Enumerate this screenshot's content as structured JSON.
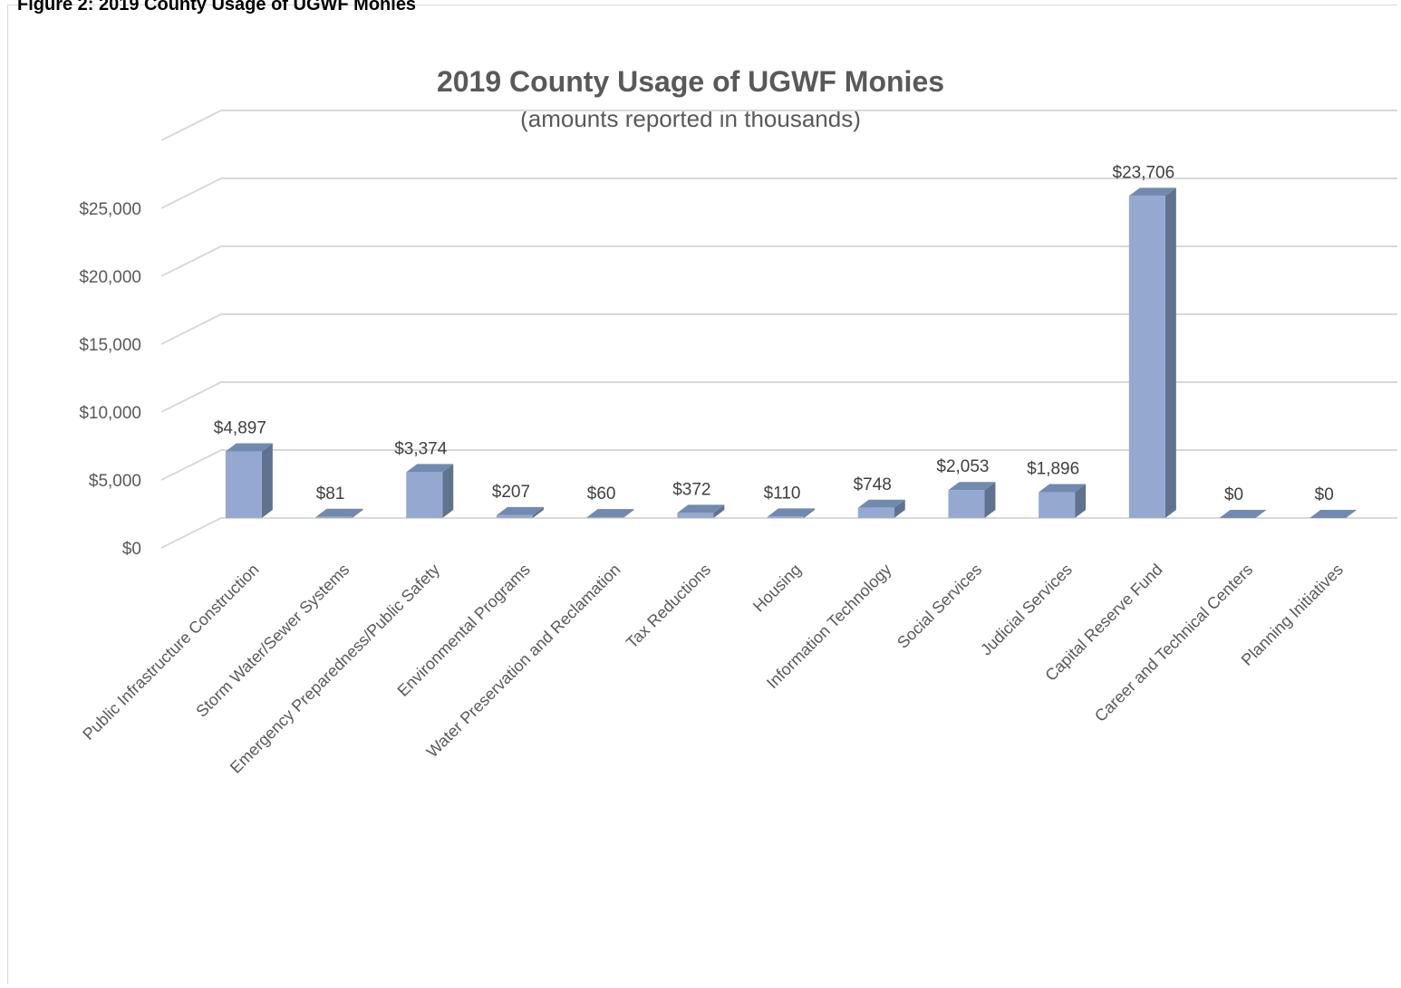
{
  "page": {
    "heading": "Figure 2: 2019 County Usage of UGWF Monies"
  },
  "chart_data": {
    "type": "bar",
    "title": "2019 County Usage of UGWF Monies",
    "subtitle": "(amounts reported in thousands)",
    "categories": [
      "Public Infrastructure Construction",
      "Storm Water/Sewer Systems",
      "Emergency Preparedness/Public Safety",
      "Environmental Programs",
      "Water Preservation and Reclamation",
      "Tax Reductions",
      "Housing",
      "Information Technology",
      "Social Services",
      "Judicial Services",
      "Capital Reserve Fund",
      "Career and Technical Centers",
      "Planning Initiatives"
    ],
    "values": [
      4897,
      81,
      3374,
      207,
      60,
      372,
      110,
      748,
      2053,
      1896,
      23706,
      0,
      0
    ],
    "data_labels": [
      "$4,897",
      "$81",
      "$3,374",
      "$207",
      "$60",
      "$372",
      "$110",
      "$748",
      "$2,053",
      "$1,896",
      "$23,706",
      "$0",
      "$0"
    ],
    "y_ticks": [
      "$0",
      "$5,000",
      "$10,000",
      "$15,000",
      "$20,000",
      "$25,000"
    ],
    "ylim": [
      0,
      25000
    ],
    "grid": true,
    "legend": false,
    "style": "3d-column",
    "colors": {
      "bar_front": "#95a9d0",
      "bar_side": "#5f7290",
      "bar_top": "#728aaf",
      "gridline": "#d9d9d9",
      "text": "#595959"
    }
  }
}
